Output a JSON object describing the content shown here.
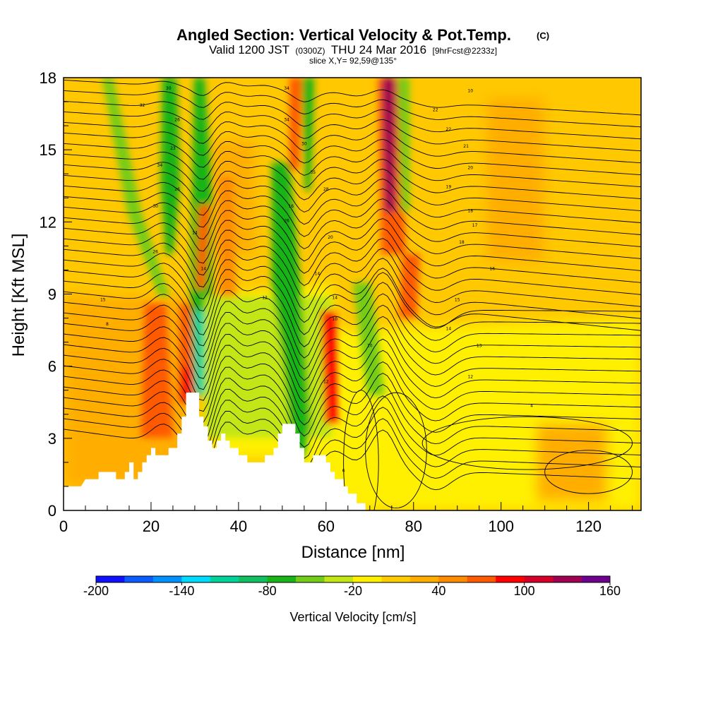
{
  "chart_data": {
    "type": "heatmap",
    "title": "Angled Section: Vertical Velocity & Pot.Temp.",
    "title_unit": "(C)",
    "subtitle_parts": [
      "Valid 1200 JST",
      "(0300Z)",
      "THU 24 Mar 2016",
      "[9hrFcst@2233z]"
    ],
    "subtitle2": "slice X,Y= 92,59@135°",
    "xlabel": "Distance [nm]",
    "ylabel": "Height [Kft MSL]",
    "xlim": [
      0,
      132
    ],
    "ylim": [
      0,
      18
    ],
    "x_ticks": [
      0,
      20,
      40,
      60,
      80,
      100,
      120
    ],
    "y_ticks": [
      0,
      3,
      6,
      9,
      12,
      15,
      18
    ],
    "colorbar": {
      "label": "Vertical Velocity [cm/s]",
      "range": [
        -200,
        160
      ],
      "tick_values": [
        -200,
        -140,
        -80,
        -20,
        40,
        100,
        160
      ],
      "colors": [
        "#1010ff",
        "#0a5cff",
        "#0090ff",
        "#00dcff",
        "#00d29a",
        "#10c060",
        "#18b418",
        "#72cc18",
        "#c2e614",
        "#fff000",
        "#ffcc00",
        "#ffae00",
        "#ff8c00",
        "#ff5a00",
        "#ff0000",
        "#d40028",
        "#a00050",
        "#6e0090"
      ]
    },
    "features": [
      {
        "x": 30,
        "w": -110,
        "note": "downdraft"
      },
      {
        "x": 29,
        "w": 100,
        "note": "updraft"
      },
      {
        "x": 50,
        "w": -60,
        "note": "downdraft"
      },
      {
        "x": 55,
        "w": -90,
        "note": "downdraft"
      },
      {
        "x": 61,
        "w": 90,
        "note": "updraft"
      },
      {
        "x": 75,
        "w": 150,
        "note": "updraft"
      },
      {
        "x": 78,
        "w": -60,
        "note": "downdraft"
      },
      {
        "x": 104,
        "w": 30,
        "note": "updraft"
      }
    ],
    "terrain": [
      [
        0,
        1
      ],
      [
        4,
        1
      ],
      [
        5,
        1.3
      ],
      [
        8,
        1.3
      ],
      [
        8,
        1.6
      ],
      [
        12,
        1.6
      ],
      [
        12,
        1.3
      ],
      [
        14,
        1.3
      ],
      [
        14,
        1.6
      ],
      [
        15,
        1.6
      ],
      [
        15,
        2
      ],
      [
        16,
        2
      ],
      [
        16,
        1.3
      ],
      [
        17,
        1.3
      ],
      [
        17,
        1.6
      ],
      [
        18,
        1.6
      ],
      [
        18,
        2
      ],
      [
        19,
        2
      ],
      [
        19,
        2.3
      ],
      [
        20,
        2.3
      ],
      [
        20,
        2.6
      ],
      [
        21,
        2.6
      ],
      [
        21,
        2.3
      ],
      [
        24,
        2.3
      ],
      [
        24,
        2.6
      ],
      [
        26,
        2.6
      ],
      [
        26,
        3.2
      ],
      [
        27,
        3.2
      ],
      [
        27,
        3.9
      ],
      [
        28,
        3.9
      ],
      [
        28,
        4.9
      ],
      [
        31,
        4.9
      ],
      [
        31,
        3.9
      ],
      [
        32,
        3.9
      ],
      [
        32,
        3.5
      ],
      [
        33,
        3.5
      ],
      [
        33,
        2.9
      ],
      [
        34,
        2.9
      ],
      [
        34,
        2.6
      ],
      [
        35,
        2.6
      ],
      [
        35,
        2.9
      ],
      [
        36,
        2.9
      ],
      [
        36,
        3.2
      ],
      [
        37,
        3.2
      ],
      [
        37,
        2.9
      ],
      [
        38,
        2.9
      ],
      [
        38,
        2.6
      ],
      [
        40,
        2.6
      ],
      [
        40,
        2.3
      ],
      [
        42,
        2.3
      ],
      [
        42,
        2
      ],
      [
        46,
        2
      ],
      [
        46,
        2.3
      ],
      [
        48,
        2.3
      ],
      [
        48,
        2.6
      ],
      [
        49,
        2.6
      ],
      [
        49,
        3.2
      ],
      [
        50,
        3.2
      ],
      [
        50,
        3.6
      ],
      [
        53,
        3.6
      ],
      [
        53,
        3.2
      ],
      [
        54,
        3.2
      ],
      [
        54,
        2.6
      ],
      [
        55,
        2.6
      ],
      [
        55,
        2
      ],
      [
        57,
        2
      ],
      [
        57,
        2.3
      ],
      [
        60,
        2.3
      ],
      [
        60,
        2
      ],
      [
        61,
        2
      ],
      [
        61,
        1.6
      ],
      [
        62,
        1.6
      ],
      [
        62,
        1.3
      ],
      [
        64,
        1.3
      ],
      [
        64,
        1
      ],
      [
        65,
        1
      ],
      [
        65,
        0.7
      ],
      [
        67,
        0.7
      ],
      [
        67,
        0.3
      ],
      [
        69,
        0.3
      ],
      [
        69,
        0
      ],
      [
        132,
        0
      ]
    ],
    "contour_labels": [
      "30",
      "32",
      "26",
      "23",
      "34",
      "26",
      "30",
      "34",
      "34",
      "30",
      "35",
      "28",
      "20",
      "16",
      "26",
      "26",
      "14",
      "14",
      "14",
      "14",
      "15",
      "8",
      "10",
      "22",
      "22",
      "21",
      "20",
      "19",
      "18",
      "17",
      "18",
      "16",
      "15",
      "14",
      "13",
      "12",
      "10",
      "10",
      "12",
      "4",
      "6",
      "12"
    ]
  }
}
